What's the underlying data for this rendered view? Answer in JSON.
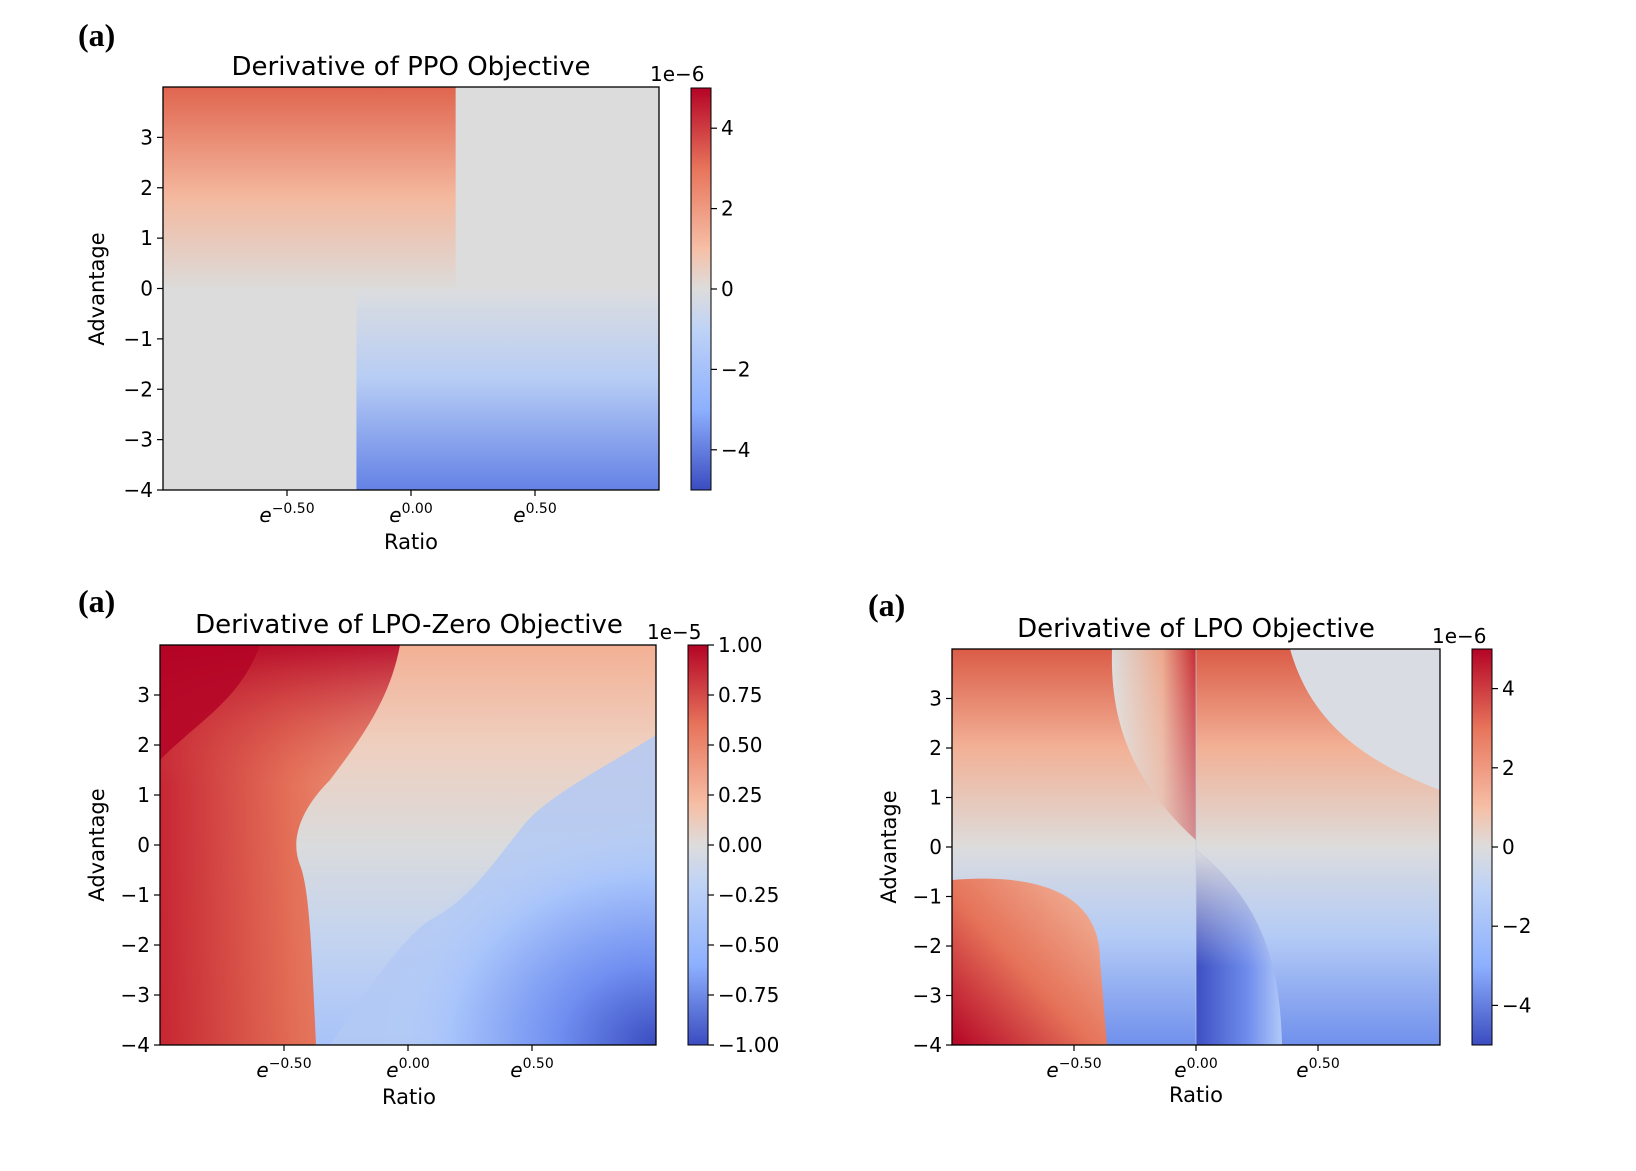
{
  "chart_data": [
    {
      "type": "heatmap",
      "panel_label": "(a)",
      "title": "Derivative of PPO Objective",
      "xlabel": "Ratio",
      "ylabel": "Advantage",
      "xticks": [
        {
          "base": "e",
          "exp": "−0.50",
          "value": -0.5
        },
        {
          "base": "e",
          "exp": "0.00",
          "value": 0.0
        },
        {
          "base": "e",
          "exp": "0.50",
          "value": 0.5
        }
      ],
      "xlim_log_ratio": [
        -1.0,
        1.0
      ],
      "yticks": [
        "3",
        "2",
        "1",
        "0",
        "−1",
        "−2",
        "−3",
        "−4"
      ],
      "ytick_values": [
        3,
        2,
        1,
        0,
        -1,
        -2,
        -3,
        -4
      ],
      "ylim": [
        -4,
        4
      ],
      "colorbar": {
        "multiplier": "1e−6",
        "ticks": [
          "4",
          "2",
          "0",
          "−2",
          "−4"
        ],
        "tick_values": [
          4,
          2,
          0,
          -2,
          -4
        ],
        "range": [
          -5,
          5
        ],
        "colormap": "coolwarm"
      },
      "regions": [
        {
          "x_from": -1.0,
          "x_to": 0.18,
          "y_from": 0,
          "y_to": 4,
          "value": "positive, grows with advantage"
        },
        {
          "x_from": 0.18,
          "x_to": 1.0,
          "y_from": 0,
          "y_to": 4,
          "value": 0
        },
        {
          "x_from": -1.0,
          "x_to": -0.22,
          "y_from": -4,
          "y_to": 0,
          "value": 0
        },
        {
          "x_from": -0.22,
          "x_to": 1.0,
          "y_from": -4,
          "y_to": 0,
          "value": "negative, grows with |advantage|"
        }
      ]
    },
    {
      "type": "heatmap",
      "panel_label": "(a)",
      "title": "Derivative of LPO-Zero Objective",
      "xlabel": "Ratio",
      "ylabel": "Advantage",
      "xticks": [
        {
          "base": "e",
          "exp": "−0.50",
          "value": -0.5
        },
        {
          "base": "e",
          "exp": "0.00",
          "value": 0.0
        },
        {
          "base": "e",
          "exp": "0.50",
          "value": 0.5
        }
      ],
      "xlim_log_ratio": [
        -1.0,
        1.0
      ],
      "yticks": [
        "3",
        "2",
        "1",
        "0",
        "−1",
        "−2",
        "−3",
        "−4"
      ],
      "ytick_values": [
        3,
        2,
        1,
        0,
        -1,
        -2,
        -3,
        -4
      ],
      "ylim": [
        -4,
        4
      ],
      "colorbar": {
        "multiplier": "1e−5",
        "ticks": [
          "1.00",
          "0.75",
          "0.50",
          "0.25",
          "0.00",
          "−0.25",
          "−0.50",
          "−0.75",
          "−1.00"
        ],
        "tick_values": [
          1.0,
          0.75,
          0.5,
          0.25,
          0.0,
          -0.25,
          -0.5,
          -0.75,
          -1.0
        ],
        "range": [
          -1.0,
          1.0
        ],
        "colormap": "coolwarm"
      }
    },
    {
      "type": "heatmap",
      "panel_label": "(a)",
      "title": "Derivative of LPO Objective",
      "xlabel": "Ratio",
      "ylabel": "Advantage",
      "xticks": [
        {
          "base": "e",
          "exp": "−0.50",
          "value": -0.5
        },
        {
          "base": "e",
          "exp": "0.00",
          "value": 0.0
        },
        {
          "base": "e",
          "exp": "0.50",
          "value": 0.5
        }
      ],
      "xlim_log_ratio": [
        -1.0,
        1.0
      ],
      "yticks": [
        "3",
        "2",
        "1",
        "0",
        "−1",
        "−2",
        "−3",
        "−4"
      ],
      "ytick_values": [
        3,
        2,
        1,
        0,
        -1,
        -2,
        -3,
        -4
      ],
      "ylim": [
        -4,
        4
      ],
      "colorbar": {
        "multiplier": "1e−6",
        "ticks": [
          "4",
          "2",
          "0",
          "−2",
          "−4"
        ],
        "tick_values": [
          4,
          2,
          0,
          -2,
          -4
        ],
        "range": [
          -5,
          5
        ],
        "colormap": "coolwarm"
      }
    }
  ]
}
